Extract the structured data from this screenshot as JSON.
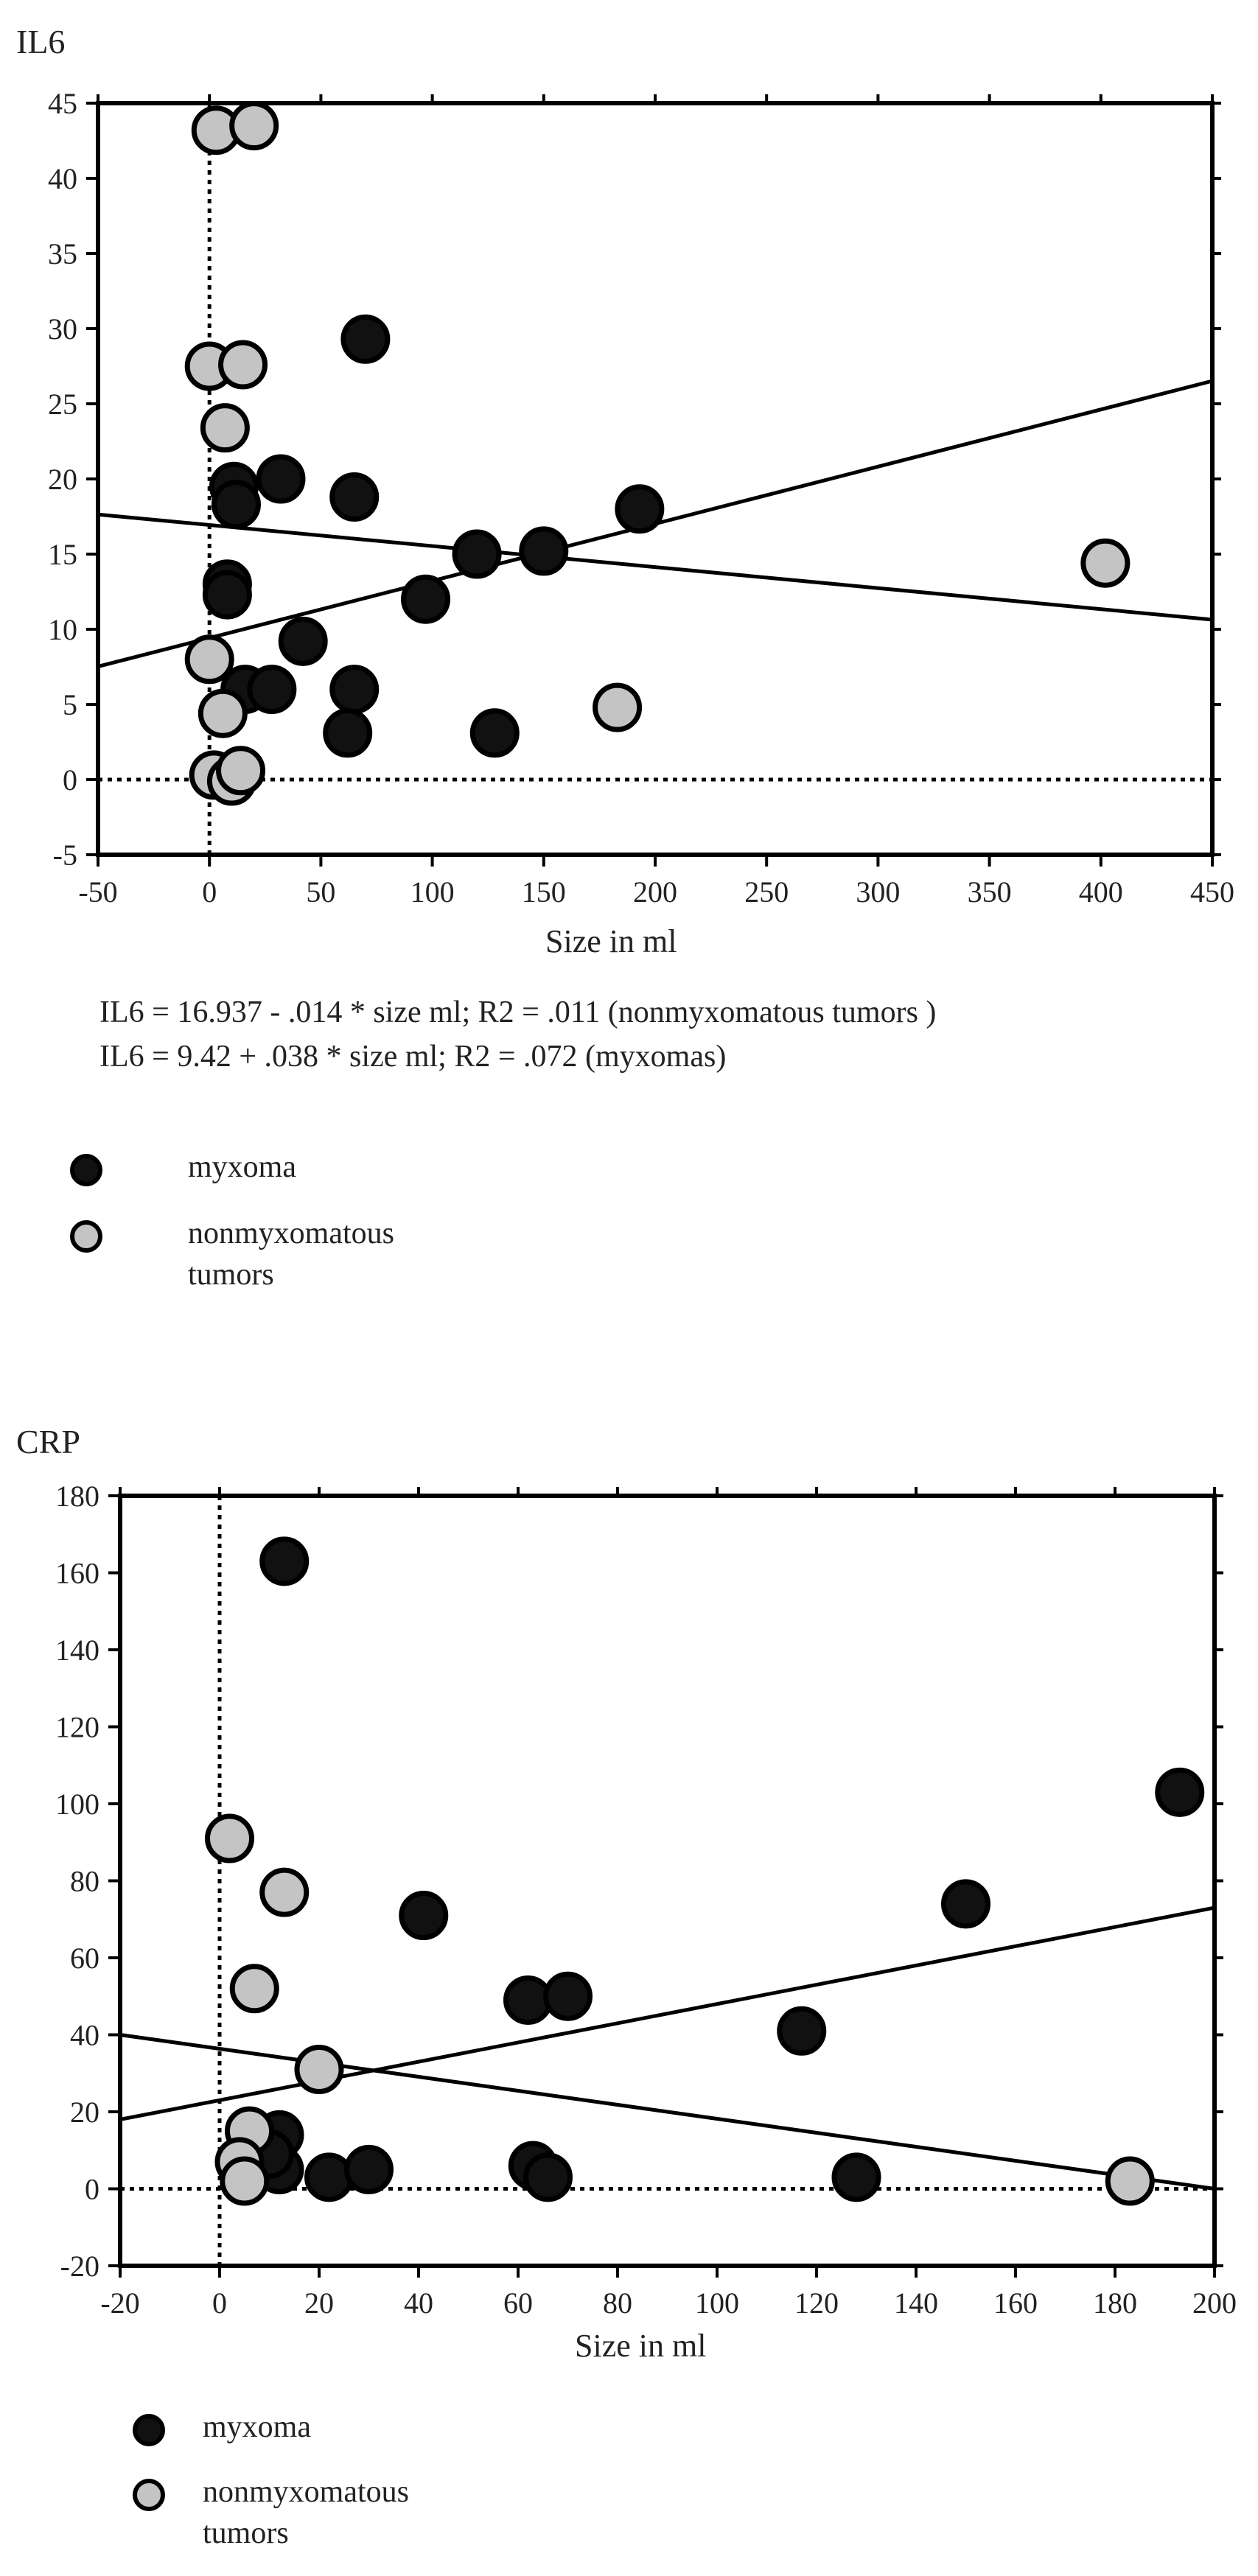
{
  "chart_data": [
    {
      "type": "scatter",
      "ylabel": "IL6",
      "xlabel": "Size in ml",
      "xlim": [
        -50,
        450
      ],
      "ylim": [
        -5,
        45
      ],
      "xticks": [
        "-50",
        "0",
        "50",
        "100",
        "150",
        "200",
        "250",
        "300",
        "350",
        "400",
        "450"
      ],
      "yticks": [
        "-5",
        "0",
        "5",
        "10",
        "15",
        "20",
        "25",
        "30",
        "35",
        "40",
        "45"
      ],
      "reference_lines": {
        "x": 0,
        "y": 0,
        "style": "dotted"
      },
      "series": [
        {
          "name": "myxoma",
          "color": "#111111",
          "points": [
            [
              70,
              29.3
            ],
            [
              11,
              19.5
            ],
            [
              32,
              20
            ],
            [
              12,
              18.3
            ],
            [
              65,
              18.8
            ],
            [
              193,
              18
            ],
            [
              120,
              15
            ],
            [
              150,
              15.2
            ],
            [
              97,
              12
            ],
            [
              8,
              13
            ],
            [
              8,
              12.3
            ],
            [
              42,
              9.2
            ],
            [
              16,
              6
            ],
            [
              28,
              6
            ],
            [
              65,
              6
            ],
            [
              62,
              3.1
            ],
            [
              128,
              3.1
            ]
          ]
        },
        {
          "name": "nonmyxomatous tumors",
          "color": "#c4c4c4",
          "points": [
            [
              3,
              43.2
            ],
            [
              20,
              43.5
            ],
            [
              0,
              27.5
            ],
            [
              15,
              27.6
            ],
            [
              7,
              23.4
            ],
            [
              402,
              14.4
            ],
            [
              0,
              8
            ],
            [
              6,
              4.4
            ],
            [
              183,
              4.8
            ],
            [
              2,
              0.3
            ],
            [
              10,
              -0.1
            ],
            [
              14,
              0.6
            ]
          ]
        }
      ],
      "regression_lines": [
        {
          "series": "nonmyxomatous tumors",
          "intercept": 16.937,
          "slope": -0.014
        },
        {
          "series": "myxoma",
          "intercept": 9.42,
          "slope": 0.038
        }
      ],
      "equations": [
        "IL6 = 16.937 - .014 * size ml; R2 = .011 (nonmyxomatous tumors )",
        "IL6 = 9.42 + .038 * size ml; R2 = .072 (myxomas)"
      ],
      "legend": [
        "myxoma",
        "nonmyxomatous",
        "tumors"
      ]
    },
    {
      "type": "scatter",
      "ylabel": "CRP",
      "xlabel": "Size in ml",
      "xlim": [
        -20,
        200
      ],
      "ylim": [
        -20,
        180
      ],
      "xticks": [
        "-20",
        "0",
        "20",
        "40",
        "60",
        "80",
        "100",
        "120",
        "140",
        "160",
        "180",
        "200"
      ],
      "yticks": [
        "-20",
        "0",
        "20",
        "40",
        "60",
        "80",
        "100",
        "120",
        "140",
        "160",
        "180"
      ],
      "reference_lines": {
        "x": 0,
        "y": 0,
        "style": "dotted"
      },
      "series": [
        {
          "name": "myxoma",
          "color": "#111111",
          "points": [
            [
              13,
              163
            ],
            [
              41,
              71
            ],
            [
              62,
              49
            ],
            [
              70,
              50
            ],
            [
              117,
              41
            ],
            [
              150,
              74
            ],
            [
              193,
              103
            ],
            [
              12,
              14
            ],
            [
              12,
              5
            ],
            [
              10,
              9
            ],
            [
              22,
              3
            ],
            [
              30,
              5
            ],
            [
              63,
              6
            ],
            [
              66,
              3
            ],
            [
              128,
              3
            ]
          ]
        },
        {
          "name": "nonmyxomatous tumors",
          "color": "#c4c4c4",
          "points": [
            [
              2,
              91
            ],
            [
              13,
              77
            ],
            [
              7,
              52
            ],
            [
              20,
              31
            ],
            [
              6,
              15
            ],
            [
              4,
              7
            ],
            [
              5,
              2
            ],
            [
              183,
              2
            ]
          ]
        }
      ],
      "regression_lines": [
        {
          "series": "myxoma",
          "x0": -20,
          "y0": 18,
          "x1": 200,
          "y1": 73
        },
        {
          "series": "nonmyxomatous tumors",
          "x0": -20,
          "y0": 40,
          "x1": 200,
          "y1": 0
        }
      ],
      "legend": [
        "myxoma",
        "nonmyxomatous",
        "tumors"
      ]
    }
  ]
}
